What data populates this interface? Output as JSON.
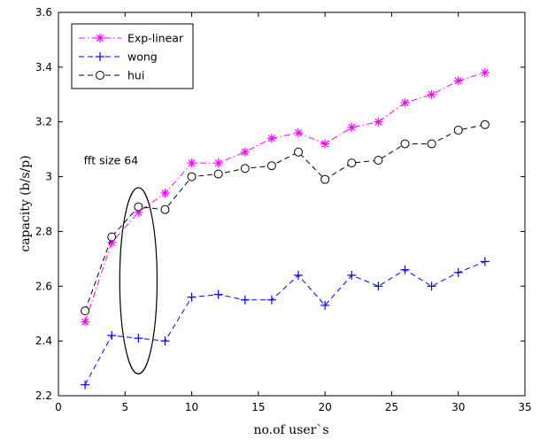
{
  "chart_data": {
    "type": "line",
    "xlabel": "no.of user`s",
    "ylabel": "capacity  (b/s/p)",
    "xlim": [
      0,
      35
    ],
    "ylim": [
      2.2,
      3.6
    ],
    "xticks": [
      0,
      5,
      10,
      15,
      20,
      25,
      30,
      35
    ],
    "yticks": [
      2.2,
      2.4,
      2.6,
      2.8,
      3,
      3.2,
      3.4,
      3.6
    ],
    "ytick_labels": [
      "2.2",
      "2.4",
      "2.6",
      "2.8",
      "3",
      "3.2",
      "3.4",
      "3.6"
    ],
    "grid": false,
    "legend_position": "top-left",
    "x": [
      2,
      4,
      6,
      8,
      10,
      12,
      14,
      16,
      18,
      20,
      22,
      24,
      26,
      28,
      30,
      32
    ],
    "series": [
      {
        "name": "Exp-linear",
        "color": "#ff00ff",
        "marker": "asterisk",
        "linestyle": "dash-dot",
        "values": [
          2.47,
          2.76,
          2.87,
          2.94,
          3.05,
          3.05,
          3.09,
          3.14,
          3.16,
          3.12,
          3.18,
          3.2,
          3.27,
          3.3,
          3.35,
          3.38
        ]
      },
      {
        "name": "wong",
        "color": "#0000ff",
        "marker": "plus",
        "linestyle": "dashed",
        "values": [
          2.24,
          2.42,
          2.41,
          2.4,
          2.56,
          2.57,
          2.55,
          2.55,
          2.64,
          2.53,
          2.64,
          2.6,
          2.66,
          2.6,
          2.65,
          2.69
        ]
      },
      {
        "name": "hui",
        "color": "#000000",
        "marker": "circle",
        "linestyle": "dashed",
        "values": [
          2.51,
          2.78,
          2.89,
          2.88,
          3.0,
          3.01,
          3.03,
          3.04,
          3.09,
          2.99,
          3.05,
          3.06,
          3.12,
          3.12,
          3.17,
          3.19
        ]
      }
    ],
    "annotations": [
      {
        "text": "fft size 64",
        "type": "ellipse",
        "x_center": 6,
        "y_center": 2.62,
        "x_halfwidth": 1.4,
        "y_halfheight": 0.34
      }
    ]
  }
}
